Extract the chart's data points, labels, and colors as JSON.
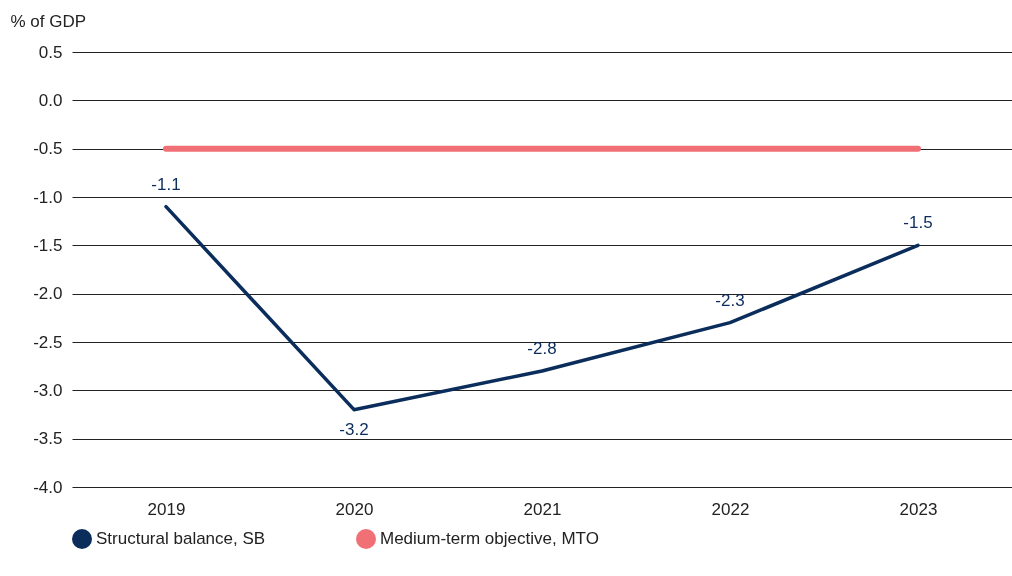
{
  "chart_data": {
    "type": "line",
    "ylabel": "% of GDP",
    "categories": [
      "2019",
      "2020",
      "2021",
      "2022",
      "2023"
    ],
    "series": [
      {
        "name": "Structural balance, SB",
        "color": "#0b2d5b",
        "values": [
          -1.1,
          -3.2,
          -2.8,
          -2.3,
          -1.5
        ],
        "data_labels": true
      },
      {
        "name": "Medium-term objective, MTO",
        "color": "#f07075",
        "values": [
          -0.5,
          -0.5,
          -0.5,
          -0.5,
          -0.5
        ]
      }
    ],
    "ylim": [
      -4.0,
      0.5
    ],
    "yticks": [
      {
        "value": -4,
        "label": "-4.0"
      },
      {
        "value": -3.5,
        "label": "-3.5"
      },
      {
        "value": -3,
        "label": "-3.0"
      },
      {
        "value": -2.5,
        "label": "-2.5"
      },
      {
        "value": -2,
        "label": "-2.0"
      },
      {
        "value": -1.5,
        "label": "-1.5"
      },
      {
        "value": -1,
        "label": "-1.0"
      },
      {
        "value": -0.5,
        "label": "-0.5"
      },
      {
        "value": 0,
        "label": "0.0"
      },
      {
        "value": 0.5,
        "label": "0.5"
      }
    ],
    "grid": "y",
    "legend": "bottom",
    "marker": "none",
    "line_style": "solid"
  }
}
